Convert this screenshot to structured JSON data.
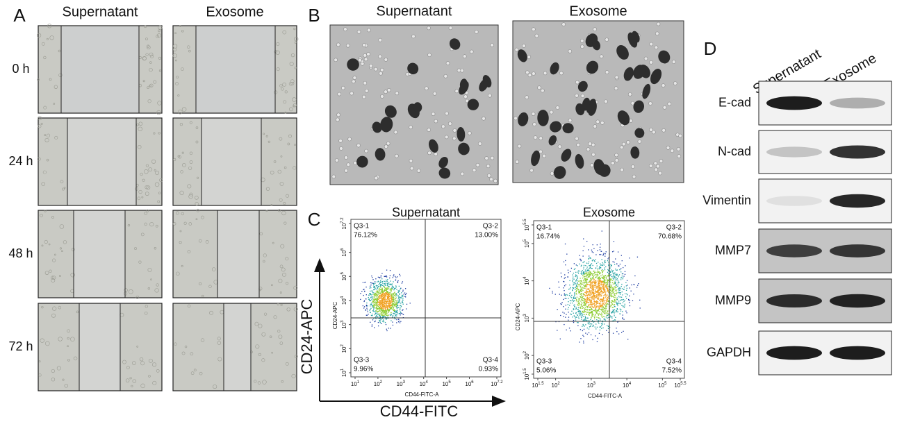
{
  "panels": {
    "A": {
      "label": "A",
      "columns": [
        "Supernatant",
        "Exosome"
      ],
      "rows": [
        "0 h",
        "24 h",
        "48 h",
        "72 h"
      ]
    },
    "B": {
      "label": "B",
      "columns": [
        "Supernatant",
        "Exosome"
      ]
    },
    "C": {
      "label": "C",
      "y_axis": "CD24-APC",
      "x_axis": "CD44-FITC",
      "plots": [
        {
          "title": "Supernatant",
          "x_label": "CD44-FITC-A",
          "y_label": "CD24-APC",
          "xticks": [
            {
              "base": "10",
              "exp": "1"
            },
            {
              "base": "10",
              "exp": "2"
            },
            {
              "base": "10",
              "exp": "3"
            },
            {
              "base": "10",
              "exp": "4"
            },
            {
              "base": "10",
              "exp": "5"
            },
            {
              "base": "10",
              "exp": "6"
            },
            {
              "base": "10",
              "exp": "7.2"
            }
          ],
          "yticks": [
            {
              "base": "10",
              "exp": "1"
            },
            {
              "base": "10",
              "exp": "2"
            },
            {
              "base": "10",
              "exp": "3"
            },
            {
              "base": "10",
              "exp": "4"
            },
            {
              "base": "10",
              "exp": "5"
            },
            {
              "base": "10",
              "exp": "6"
            },
            {
              "base": "10",
              "exp": "7.2"
            }
          ],
          "quadrants": [
            {
              "name": "Q3-1",
              "percent": "76.12%"
            },
            {
              "name": "Q3-2",
              "percent": "13.00%"
            },
            {
              "name": "Q3-3",
              "percent": "9.96%"
            },
            {
              "name": "Q3-4",
              "percent": "0.93%"
            }
          ]
        },
        {
          "title": "Exosome",
          "x_label": "CD44-FITC-A",
          "y_label": "CD24-APC",
          "xticks": [
            {
              "base": "10",
              "exp": "1.5"
            },
            {
              "base": "10",
              "exp": "2"
            },
            {
              "base": "10",
              "exp": "3"
            },
            {
              "base": "10",
              "exp": "4"
            },
            {
              "base": "10",
              "exp": "5"
            },
            {
              "base": "10",
              "exp": "5.5"
            }
          ],
          "yticks": [
            {
              "base": "10",
              "exp": "1.5"
            },
            {
              "base": "10",
              "exp": "2"
            },
            {
              "base": "10",
              "exp": "3"
            },
            {
              "base": "10",
              "exp": "4"
            },
            {
              "base": "10",
              "exp": "5"
            },
            {
              "base": "10",
              "exp": "5.5"
            }
          ],
          "quadrants": [
            {
              "name": "Q3-1",
              "percent": "16.74%"
            },
            {
              "name": "Q3-2",
              "percent": "70.68%"
            },
            {
              "name": "Q3-3",
              "percent": "5.06%"
            },
            {
              "name": "Q3-4",
              "percent": "7.52%"
            }
          ]
        }
      ]
    },
    "D": {
      "label": "D",
      "columns": [
        "Supernatant",
        "Exosome"
      ],
      "rows": [
        "E-cad",
        "N-cad",
        "Vimentin",
        "MMP7",
        "MMP9",
        "GAPDH"
      ]
    }
  }
}
